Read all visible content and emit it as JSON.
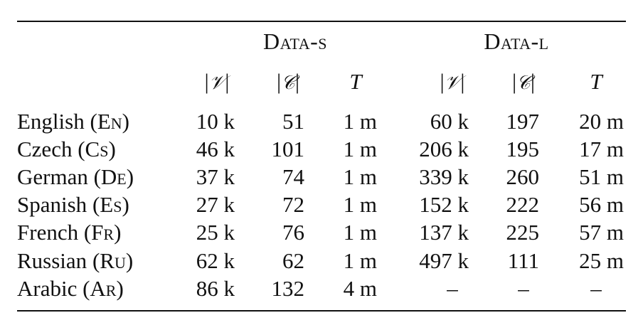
{
  "header": {
    "groups": [
      "Data-s",
      "Data-l"
    ],
    "subheaders": [
      {
        "bars": true,
        "symbol": "𝒱"
      },
      {
        "bars": true,
        "symbol": "𝒞"
      },
      {
        "bars": false,
        "symbol": "T"
      },
      {
        "bars": true,
        "symbol": "𝒱"
      },
      {
        "bars": true,
        "symbol": "𝒞"
      },
      {
        "bars": false,
        "symbol": "T"
      }
    ]
  },
  "rows": [
    {
      "name": "English",
      "code": "En",
      "values": [
        "10 k",
        "51",
        "1 m",
        "60 k",
        "197",
        "20 m"
      ]
    },
    {
      "name": "Czech",
      "code": "Cs",
      "values": [
        "46 k",
        "101",
        "1 m",
        "206 k",
        "195",
        "17 m"
      ]
    },
    {
      "name": "German",
      "code": "De",
      "values": [
        "37 k",
        "74",
        "1 m",
        "339 k",
        "260",
        "51 m"
      ]
    },
    {
      "name": "Spanish",
      "code": "Es",
      "values": [
        "27 k",
        "72",
        "1 m",
        "152 k",
        "222",
        "56 m"
      ]
    },
    {
      "name": "French",
      "code": "Fr",
      "values": [
        "25 k",
        "76",
        "1 m",
        "137 k",
        "225",
        "57 m"
      ]
    },
    {
      "name": "Russian",
      "code": "Ru",
      "values": [
        "62 k",
        "62",
        "1 m",
        "497 k",
        "111",
        "25 m"
      ]
    },
    {
      "name": "Arabic",
      "code": "Ar",
      "values": [
        "86 k",
        "132",
        "4 m",
        "–",
        "–",
        "–"
      ]
    }
  ]
}
